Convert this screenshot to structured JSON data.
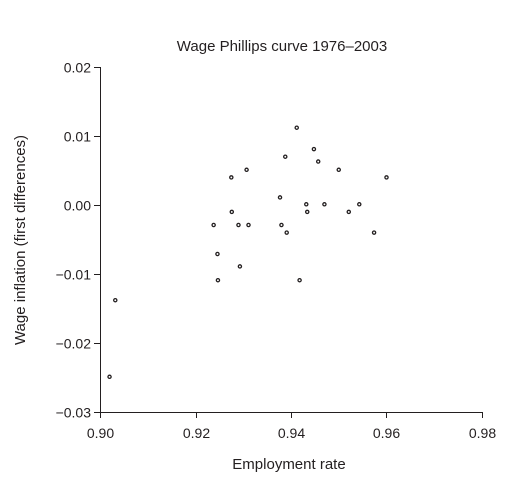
{
  "chart_data": {
    "type": "scatter",
    "title": "Wage Phillips curve 1976–2003",
    "xlabel": "Employment rate",
    "ylabel": "Wage inflation (first differences)",
    "xlim": [
      0.9,
      0.98
    ],
    "ylim": [
      -0.03,
      0.02
    ],
    "x_ticks": [
      "0.90",
      "0.92",
      "0.94",
      "0.96",
      "0.98"
    ],
    "y_ticks": [
      "−0.03",
      "−0.02",
      "−0.01",
      "0.00",
      "0.01",
      "0.02"
    ],
    "x_tick_values": [
      0.9,
      0.92,
      0.94,
      0.96,
      0.98
    ],
    "y_tick_values": [
      -0.03,
      -0.02,
      -0.01,
      0.0,
      0.01,
      0.02
    ],
    "grid": false,
    "axes": "left-bottom",
    "marker_color": "#231f20",
    "points": [
      {
        "x": 0.902,
        "y": -0.0249
      },
      {
        "x": 0.9032,
        "y": -0.0138
      },
      {
        "x": 0.9238,
        "y": -0.0029
      },
      {
        "x": 0.9246,
        "y": -0.0071
      },
      {
        "x": 0.9247,
        "y": -0.0109
      },
      {
        "x": 0.9275,
        "y": 0.004
      },
      {
        "x": 0.9276,
        "y": -0.001
      },
      {
        "x": 0.929,
        "y": -0.0029
      },
      {
        "x": 0.9293,
        "y": -0.0089
      },
      {
        "x": 0.9307,
        "y": 0.0051
      },
      {
        "x": 0.9311,
        "y": -0.0029
      },
      {
        "x": 0.9377,
        "y": 0.0011
      },
      {
        "x": 0.938,
        "y": -0.0029
      },
      {
        "x": 0.9388,
        "y": 0.007
      },
      {
        "x": 0.9391,
        "y": -0.004
      },
      {
        "x": 0.9412,
        "y": 0.0112
      },
      {
        "x": 0.9418,
        "y": -0.0109
      },
      {
        "x": 0.9432,
        "y": 0.0001
      },
      {
        "x": 0.9434,
        "y": -0.001
      },
      {
        "x": 0.9448,
        "y": 0.0081
      },
      {
        "x": 0.9457,
        "y": 0.0063
      },
      {
        "x": 0.947,
        "y": 0.0001
      },
      {
        "x": 0.95,
        "y": 0.0051
      },
      {
        "x": 0.9521,
        "y": -0.001
      },
      {
        "x": 0.9543,
        "y": 0.0001
      },
      {
        "x": 0.9574,
        "y": -0.004
      },
      {
        "x": 0.96,
        "y": 0.004
      }
    ]
  }
}
